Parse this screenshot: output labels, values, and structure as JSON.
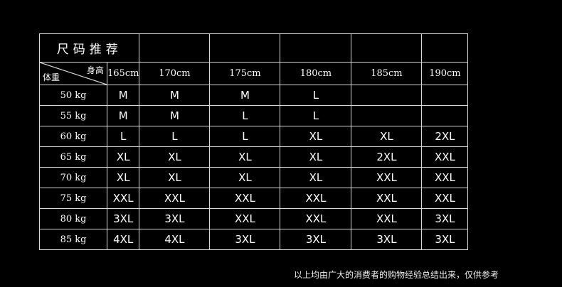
{
  "title": "尺码推荐",
  "corner": {
    "height_label": "身高",
    "weight_label": "体重"
  },
  "heights": [
    "165cm",
    "170cm",
    "175cm",
    "180cm",
    "185cm",
    "190cm"
  ],
  "rows": [
    {
      "weight": "50 kg",
      "sizes": [
        "M",
        "M",
        "M",
        "L",
        "",
        ""
      ]
    },
    {
      "weight": "55 kg",
      "sizes": [
        "M",
        "M",
        "L",
        "L",
        "",
        ""
      ]
    },
    {
      "weight": "60 kg",
      "sizes": [
        "L",
        "L",
        "L",
        "XL",
        "XL",
        "2XL"
      ]
    },
    {
      "weight": "65 kg",
      "sizes": [
        "XL",
        "XL",
        "XL",
        "XL",
        "2XL",
        "XXL"
      ]
    },
    {
      "weight": "70 kg",
      "sizes": [
        "XL",
        "XL",
        "XL",
        "XL",
        "XXL",
        "XXL"
      ]
    },
    {
      "weight": "75 kg",
      "sizes": [
        "XXL",
        "XXL",
        "XXL",
        "XXL",
        "XXL",
        "XXL"
      ]
    },
    {
      "weight": "80 kg",
      "sizes": [
        "3XL",
        "3XL",
        "XXL",
        "XXL",
        "XXL",
        "3XL"
      ]
    },
    {
      "weight": "85 kg",
      "sizes": [
        "4XL",
        "4XL",
        "3XL",
        "3XL",
        "3XL",
        "3XL"
      ]
    }
  ],
  "note": "以上均由广大的消费者的购物经验总结出来，仅供参考"
}
